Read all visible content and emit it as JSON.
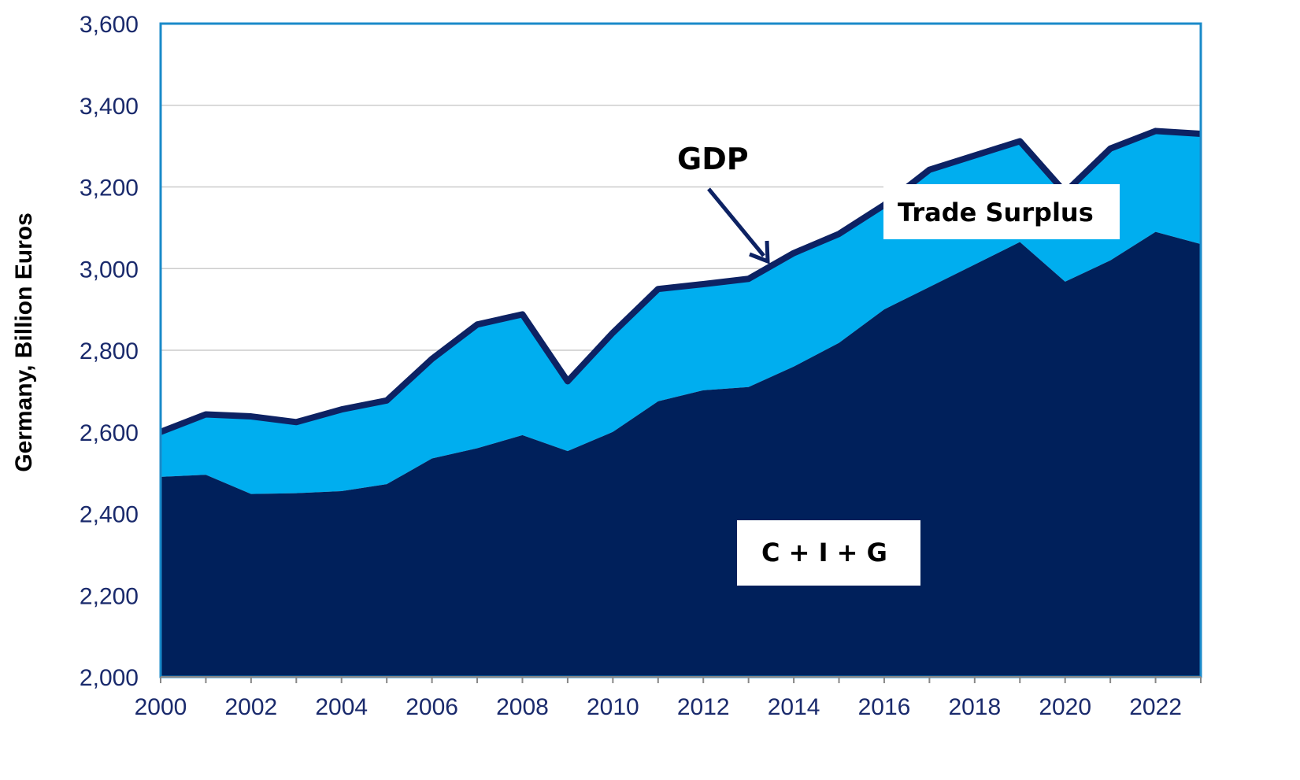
{
  "chart_data": {
    "type": "area",
    "ylabel": "Germany, Billion Euros",
    "xlabel": "",
    "ylim": [
      2000,
      3600
    ],
    "xlim": [
      2000,
      2023
    ],
    "yticks": [
      "2,000",
      "2,200",
      "2,400",
      "2,600",
      "2,800",
      "3,000",
      "3,200",
      "3,400",
      "3,600"
    ],
    "ytick_values": [
      2000,
      2200,
      2400,
      2600,
      2800,
      3000,
      3200,
      3400,
      3600
    ],
    "xticks": [
      "2000",
      "2002",
      "2004",
      "2006",
      "2008",
      "2010",
      "2012",
      "2014",
      "2016",
      "2018",
      "2020",
      "2022"
    ],
    "xtick_values": [
      2000,
      2002,
      2004,
      2006,
      2008,
      2010,
      2012,
      2014,
      2016,
      2018,
      2020,
      2022
    ],
    "grid": true,
    "x": [
      2000,
      2001,
      2002,
      2003,
      2004,
      2005,
      2006,
      2007,
      2008,
      2009,
      2010,
      2011,
      2012,
      2013,
      2014,
      2015,
      2016,
      2017,
      2018,
      2019,
      2020,
      2021,
      2022,
      2023
    ],
    "series": [
      {
        "name": "C + I + G",
        "color": "#00205b",
        "values": [
          2490,
          2495,
          2448,
          2450,
          2455,
          2472,
          2535,
          2560,
          2592,
          2553,
          2600,
          2675,
          2702,
          2710,
          2760,
          2818,
          2900,
          2955,
          3010,
          3065,
          2968,
          3020,
          3090,
          3060
        ]
      },
      {
        "name": "Trade Surplus",
        "color": "#00aeef",
        "values": [
          2600,
          2643,
          2638,
          2624,
          2655,
          2677,
          2779,
          2863,
          2888,
          2724,
          2843,
          2950,
          2962,
          2975,
          3038,
          3085,
          3156,
          3242,
          3277,
          3312,
          3187,
          3294,
          3337,
          3330
        ]
      },
      {
        "name": "GDP",
        "color": "#0d2263",
        "values": [
          2600,
          2643,
          2638,
          2624,
          2655,
          2677,
          2779,
          2863,
          2888,
          2724,
          2843,
          2950,
          2962,
          2975,
          3038,
          3085,
          3156,
          3242,
          3277,
          3312,
          3187,
          3294,
          3337,
          3330
        ]
      }
    ],
    "annotations": {
      "gdp": "GDP",
      "trade": "Trade Surplus",
      "cig": "C + I + G"
    },
    "frame_color": "#1a8ac9",
    "grid_color": "#cccccc",
    "tick_color": "#1a2a6c"
  }
}
